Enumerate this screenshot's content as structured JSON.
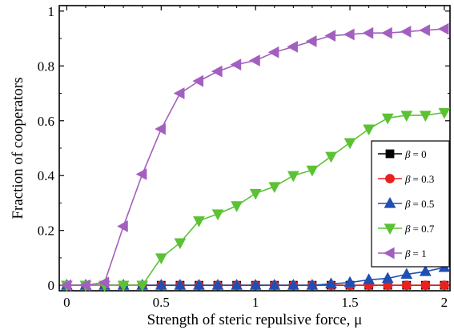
{
  "chart_data": {
    "type": "line",
    "title": "",
    "xlabel": "Strength of steric repulsive force, μ",
    "ylabel": "Fraction of cooperators",
    "xlim": [
      -0.04,
      2.03
    ],
    "ylim": [
      -0.02,
      1.02
    ],
    "xticks": [
      0,
      0.5,
      1,
      1.5,
      2
    ],
    "yticks": [
      0,
      0.2,
      0.4,
      0.6,
      0.8,
      1
    ],
    "xtick_labels": [
      "0",
      "0.5",
      "1",
      "1.5",
      "2"
    ],
    "ytick_labels": [
      "0",
      "0.2",
      "0.4",
      "0.6",
      "0.8",
      "1"
    ],
    "grid": false,
    "legend_position": "right",
    "x": [
      0,
      0.1,
      0.2,
      0.3,
      0.4,
      0.5,
      0.6,
      0.7,
      0.8,
      0.9,
      1.0,
      1.1,
      1.2,
      1.3,
      1.4,
      1.5,
      1.6,
      1.7,
      1.8,
      1.9,
      2.0
    ],
    "series": [
      {
        "name": "β = 0",
        "label_symbol": "β",
        "label_value": "= 0",
        "marker": "square",
        "color": "#000000",
        "values": [
          0,
          0,
          0,
          0,
          0,
          0,
          0,
          0,
          0,
          0,
          0,
          0,
          0,
          0,
          0,
          0,
          0,
          0,
          0,
          0,
          0
        ]
      },
      {
        "name": "β = 0.3",
        "label_symbol": "β",
        "label_value": "= 0.3",
        "marker": "circle",
        "color": "#e8201e",
        "values": [
          0,
          0,
          0,
          0,
          0,
          0,
          0,
          0,
          0,
          0,
          0,
          0,
          0,
          0,
          0,
          0,
          0,
          0,
          0,
          0,
          0
        ]
      },
      {
        "name": "β = 0.5",
        "label_symbol": "β",
        "label_value": "= 0.5",
        "marker": "triangle-up",
        "color": "#1f4fb3",
        "values": [
          0,
          0,
          0,
          0,
          0,
          0,
          0,
          0,
          0,
          0,
          0,
          0,
          0,
          0,
          0.005,
          0.01,
          0.02,
          0.025,
          0.04,
          0.05,
          0.065
        ]
      },
      {
        "name": "β = 0.7",
        "label_symbol": "β",
        "label_value": "= 0.7",
        "marker": "triangle-down",
        "color": "#5bc234",
        "values": [
          0,
          0,
          0,
          0,
          0,
          0.1,
          0.155,
          0.235,
          0.26,
          0.29,
          0.335,
          0.36,
          0.4,
          0.42,
          0.47,
          0.52,
          0.57,
          0.61,
          0.62,
          0.62,
          0.63
        ]
      },
      {
        "name": "β = 1",
        "label_symbol": "β",
        "label_value": "= 1",
        "marker": "triangle-left",
        "color": "#a35fbf",
        "values": [
          0,
          0,
          0.01,
          0.215,
          0.405,
          0.57,
          0.7,
          0.745,
          0.78,
          0.805,
          0.82,
          0.85,
          0.87,
          0.89,
          0.91,
          0.915,
          0.92,
          0.92,
          0.925,
          0.93,
          0.935
        ]
      }
    ]
  }
}
